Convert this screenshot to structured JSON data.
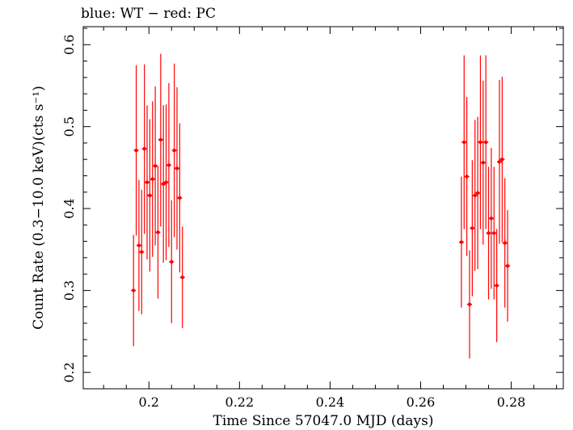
{
  "chart_data": {
    "type": "scatter",
    "title": "blue: WT − red: PC",
    "xlabel": "Time Since 57047.0 MJD (days)",
    "ylabel": "Count Rate (0.3−10.0 keV)(cts s⁻¹)",
    "xlim": [
      0.1855,
      0.2915
    ],
    "ylim": [
      0.18,
      0.622
    ],
    "x_ticks": [
      0.2,
      0.22,
      0.24,
      0.26,
      0.28
    ],
    "x_tick_labels": [
      "0.2",
      "0.22",
      "0.24",
      "0.26",
      "0.28"
    ],
    "y_ticks": [
      0.2,
      0.3,
      0.4,
      0.5,
      0.6
    ],
    "y_tick_labels": [
      "0.2",
      "0.3",
      "0.4",
      "0.5",
      "0.6"
    ],
    "grid": false,
    "series": [
      {
        "color": "#ff0000",
        "points": [
          {
            "x": 0.1966,
            "y": 0.3,
            "lo": 0.232,
            "hi": 0.368
          },
          {
            "x": 0.1972,
            "y": 0.471,
            "lo": 0.367,
            "hi": 0.575
          },
          {
            "x": 0.1978,
            "y": 0.355,
            "lo": 0.275,
            "hi": 0.435
          },
          {
            "x": 0.1984,
            "y": 0.347,
            "lo": 0.271,
            "hi": 0.423
          },
          {
            "x": 0.199,
            "y": 0.473,
            "lo": 0.369,
            "hi": 0.576
          },
          {
            "x": 0.1996,
            "y": 0.432,
            "lo": 0.338,
            "hi": 0.526
          },
          {
            "x": 0.2002,
            "y": 0.416,
            "lo": 0.323,
            "hi": 0.509
          },
          {
            "x": 0.2008,
            "y": 0.436,
            "lo": 0.341,
            "hi": 0.531
          },
          {
            "x": 0.2014,
            "y": 0.452,
            "lo": 0.355,
            "hi": 0.549
          },
          {
            "x": 0.202,
            "y": 0.371,
            "lo": 0.29,
            "hi": 0.452
          },
          {
            "x": 0.2026,
            "y": 0.484,
            "lo": 0.378,
            "hi": 0.589
          },
          {
            "x": 0.2032,
            "y": 0.43,
            "lo": 0.334,
            "hi": 0.526
          },
          {
            "x": 0.2038,
            "y": 0.432,
            "lo": 0.337,
            "hi": 0.527
          },
          {
            "x": 0.2044,
            "y": 0.453,
            "lo": 0.353,
            "hi": 0.553
          },
          {
            "x": 0.205,
            "y": 0.335,
            "lo": 0.26,
            "hi": 0.41
          },
          {
            "x": 0.2056,
            "y": 0.471,
            "lo": 0.365,
            "hi": 0.577
          },
          {
            "x": 0.2062,
            "y": 0.449,
            "lo": 0.35,
            "hi": 0.548
          },
          {
            "x": 0.2068,
            "y": 0.413,
            "lo": 0.322,
            "hi": 0.504
          },
          {
            "x": 0.2074,
            "y": 0.316,
            "lo": 0.254,
            "hi": 0.378
          },
          {
            "x": 0.269,
            "y": 0.359,
            "lo": 0.279,
            "hi": 0.439
          },
          {
            "x": 0.2696,
            "y": 0.481,
            "lo": 0.375,
            "hi": 0.587
          },
          {
            "x": 0.2702,
            "y": 0.439,
            "lo": 0.342,
            "hi": 0.536
          },
          {
            "x": 0.2708,
            "y": 0.283,
            "lo": 0.217,
            "hi": 0.349
          },
          {
            "x": 0.2714,
            "y": 0.376,
            "lo": 0.293,
            "hi": 0.459
          },
          {
            "x": 0.272,
            "y": 0.416,
            "lo": 0.324,
            "hi": 0.508
          },
          {
            "x": 0.2726,
            "y": 0.419,
            "lo": 0.326,
            "hi": 0.512
          },
          {
            "x": 0.2732,
            "y": 0.481,
            "lo": 0.375,
            "hi": 0.587
          },
          {
            "x": 0.2738,
            "y": 0.456,
            "lo": 0.356,
            "hi": 0.556
          },
          {
            "x": 0.2744,
            "y": 0.481,
            "lo": 0.375,
            "hi": 0.587
          },
          {
            "x": 0.275,
            "y": 0.37,
            "lo": 0.289,
            "hi": 0.451
          },
          {
            "x": 0.2756,
            "y": 0.388,
            "lo": 0.302,
            "hi": 0.474
          },
          {
            "x": 0.2762,
            "y": 0.37,
            "lo": 0.289,
            "hi": 0.451
          },
          {
            "x": 0.2768,
            "y": 0.306,
            "lo": 0.237,
            "hi": 0.375
          },
          {
            "x": 0.2774,
            "y": 0.457,
            "lo": 0.357,
            "hi": 0.557
          },
          {
            "x": 0.278,
            "y": 0.46,
            "lo": 0.359,
            "hi": 0.561
          },
          {
            "x": 0.2786,
            "y": 0.358,
            "lo": 0.279,
            "hi": 0.437
          },
          {
            "x": 0.2792,
            "y": 0.33,
            "lo": 0.262,
            "hi": 0.398
          }
        ]
      }
    ]
  }
}
